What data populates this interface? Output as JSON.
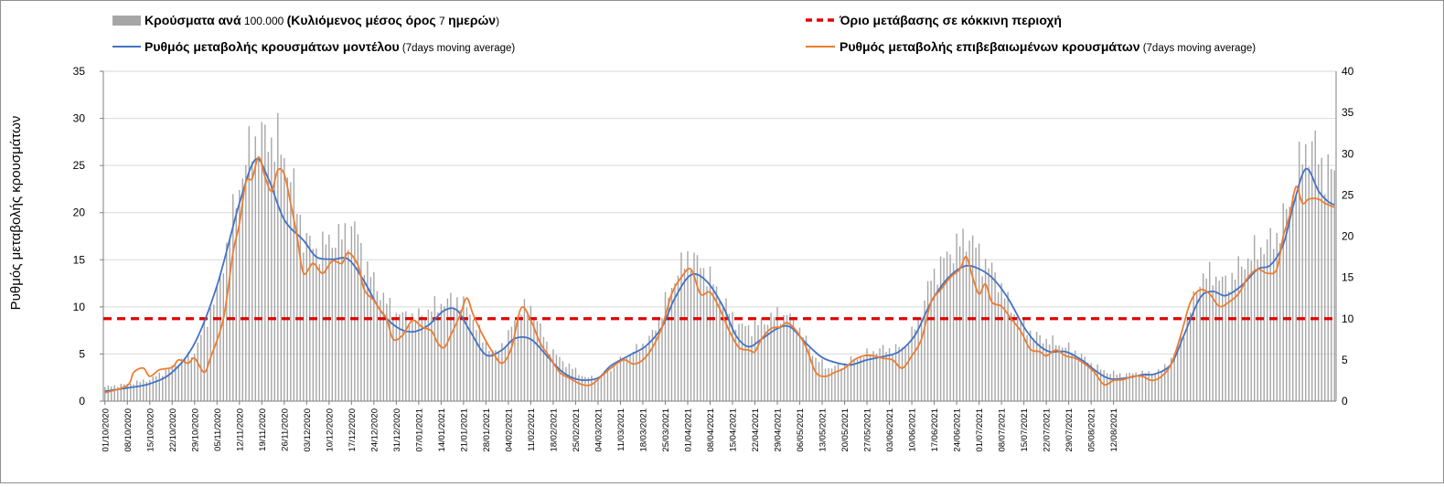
{
  "chart_data": {
    "type": "combo-bar-line",
    "ylabel": "Ρυθμός μεταβολής κρουσμάτων",
    "ylim_left": [
      0,
      35
    ],
    "ylim_right": [
      0,
      40
    ],
    "yticks_left": [
      "0",
      "5",
      "10",
      "15",
      "20",
      "25",
      "30",
      "35"
    ],
    "yticks_right": [
      "0",
      "5",
      "10",
      "15",
      "20",
      "25",
      "30",
      "35",
      "40"
    ],
    "threshold": 10,
    "legend": {
      "bars": {
        "bold": "Κρούσματα ανά",
        "normal1": " 100.000 ",
        "bold2": "(Κυλιόμενος μέσος όρος",
        "normal2": " 7 ",
        "bold3": "ημερών",
        "normal3": ")"
      },
      "threshold": "Όριο μετάβασης σε κόκκινη περιοχή",
      "model_line": {
        "bold": "Ρυθμός μεταβολής κρουσμάτων μοντέλου",
        "normal": " (7days moving average)"
      },
      "confirmed_line": {
        "bold": "Ρυθμός μεταβολής επιβεβαιωμένων κρουσμάτων",
        "normal": " (7days moving average)"
      }
    },
    "x_labels": [
      "01/10/2020",
      "08/10/2020",
      "15/10/2020",
      "22/10/2020",
      "29/10/2020",
      "05/11/2020",
      "12/11/2020",
      "19/11/2020",
      "26/11/2020",
      "03/12/2020",
      "10/12/2020",
      "17/12/2020",
      "24/12/2020",
      "31/12/2020",
      "07/01/2021",
      "14/01/2021",
      "21/01/2021",
      "28/01/2021",
      "04/02/2021",
      "11/02/2021",
      "18/02/2021",
      "25/02/2021",
      "04/03/2021",
      "11/03/2021",
      "18/03/2021",
      "25/03/2021",
      "01/04/2021",
      "08/04/2021",
      "15/04/2021",
      "22/04/2021",
      "29/04/2021",
      "06/05/2021",
      "13/05/2021",
      "20/05/2021",
      "27/05/2021",
      "03/06/2021",
      "10/06/2021",
      "17/06/2021",
      "24/06/2021",
      "01/07/2021",
      "08/07/2021",
      "15/07/2021",
      "22/07/2021",
      "29/07/2021",
      "05/08/2021",
      "12/08/2021"
    ],
    "colors": {
      "bars": "#a6a6a6",
      "model": "#4472c4",
      "confirmed": "#ed7d31",
      "threshold": "#e00000"
    },
    "model_keypoints": [
      [
        0,
        1.2
      ],
      [
        7,
        1.6
      ],
      [
        14,
        2.1
      ],
      [
        21,
        3.5
      ],
      [
        28,
        7.0
      ],
      [
        35,
        14.0
      ],
      [
        42,
        24.0
      ],
      [
        47,
        29.3
      ],
      [
        51,
        27.0
      ],
      [
        56,
        22.0
      ],
      [
        62,
        19.5
      ],
      [
        66,
        17.5
      ],
      [
        71,
        17.2
      ],
      [
        76,
        17.2
      ],
      [
        81,
        14.5
      ],
      [
        86,
        11.0
      ],
      [
        91,
        9.0
      ],
      [
        96,
        8.4
      ],
      [
        101,
        9.2
      ],
      [
        106,
        11.0
      ],
      [
        110,
        11.0
      ],
      [
        114,
        8.5
      ],
      [
        119,
        5.6
      ],
      [
        124,
        6.2
      ],
      [
        128,
        7.6
      ],
      [
        133,
        7.5
      ],
      [
        138,
        5.5
      ],
      [
        143,
        3.5
      ],
      [
        148,
        2.6
      ],
      [
        154,
        2.8
      ],
      [
        158,
        4.3
      ],
      [
        164,
        5.6
      ],
      [
        169,
        6.7
      ],
      [
        174,
        9.0
      ],
      [
        178,
        12.5
      ],
      [
        183,
        15.3
      ],
      [
        188,
        14.5
      ],
      [
        193,
        11.5
      ],
      [
        197,
        8.0
      ],
      [
        201,
        6.6
      ],
      [
        205,
        7.5
      ],
      [
        210,
        8.8
      ],
      [
        214,
        9.0
      ],
      [
        219,
        7.0
      ],
      [
        224,
        5.3
      ],
      [
        229,
        4.6
      ],
      [
        233,
        4.4
      ],
      [
        238,
        5.0
      ],
      [
        243,
        5.4
      ],
      [
        248,
        6.0
      ],
      [
        253,
        8.0
      ],
      [
        258,
        12.0
      ],
      [
        263,
        14.8
      ],
      [
        268,
        16.3
      ],
      [
        272,
        16.2
      ],
      [
        277,
        15.0
      ],
      [
        282,
        12.5
      ],
      [
        287,
        9.0
      ],
      [
        291,
        7.0
      ],
      [
        295,
        6.0
      ],
      [
        300,
        6.0
      ],
      [
        305,
        5.0
      ],
      [
        310,
        3.5
      ],
      [
        314,
        2.7
      ],
      [
        319,
        2.8
      ],
      [
        324,
        3.2
      ],
      [
        328,
        3.3
      ],
      [
        333,
        4.5
      ],
      [
        337,
        8.0
      ],
      [
        342,
        12.5
      ],
      [
        346,
        13.3
      ],
      [
        350,
        12.8
      ],
      [
        355,
        14.0
      ],
      [
        360,
        16.0
      ],
      [
        364,
        16.5
      ],
      [
        368,
        19.0
      ],
      [
        371,
        23.5
      ],
      [
        374,
        27.5
      ],
      [
        376,
        28.0
      ],
      [
        379,
        25.5
      ],
      [
        382,
        24.2
      ],
      [
        384,
        23.8
      ]
    ],
    "confirmed_keypoints": [
      [
        0,
        1.0
      ],
      [
        7,
        1.9
      ],
      [
        9,
        3.5
      ],
      [
        12,
        4.0
      ],
      [
        14,
        3.0
      ],
      [
        17,
        3.8
      ],
      [
        21,
        4.1
      ],
      [
        23,
        5.0
      ],
      [
        26,
        4.6
      ],
      [
        28,
        5.2
      ],
      [
        31,
        3.5
      ],
      [
        33,
        5.3
      ],
      [
        37,
        10.0
      ],
      [
        40,
        18.0
      ],
      [
        42,
        21.5
      ],
      [
        44,
        26.5
      ],
      [
        46,
        27.0
      ],
      [
        48,
        29.6
      ],
      [
        50,
        27.2
      ],
      [
        52,
        25.5
      ],
      [
        54,
        28.0
      ],
      [
        56,
        27.5
      ],
      [
        58,
        24.0
      ],
      [
        60,
        20.0
      ],
      [
        62,
        15.5
      ],
      [
        65,
        16.7
      ],
      [
        68,
        15.5
      ],
      [
        71,
        17.0
      ],
      [
        74,
        16.7
      ],
      [
        76,
        18.0
      ],
      [
        79,
        16.5
      ],
      [
        81,
        13.5
      ],
      [
        84,
        12.2
      ],
      [
        86,
        11.0
      ],
      [
        88,
        10.0
      ],
      [
        90,
        7.5
      ],
      [
        93,
        8.0
      ],
      [
        96,
        9.8
      ],
      [
        99,
        9.0
      ],
      [
        102,
        8.5
      ],
      [
        104,
        7.0
      ],
      [
        106,
        6.5
      ],
      [
        108,
        8.0
      ],
      [
        111,
        10.5
      ],
      [
        113,
        12.5
      ],
      [
        115,
        10.5
      ],
      [
        118,
        8.0
      ],
      [
        121,
        6.0
      ],
      [
        124,
        4.6
      ],
      [
        127,
        6.5
      ],
      [
        130,
        11.3
      ],
      [
        133,
        9.8
      ],
      [
        136,
        7.0
      ],
      [
        139,
        5.3
      ],
      [
        142,
        3.5
      ],
      [
        145,
        2.8
      ],
      [
        149,
        2.0
      ],
      [
        152,
        2.0
      ],
      [
        155,
        3.0
      ],
      [
        158,
        4.0
      ],
      [
        162,
        5.0
      ],
      [
        165,
        4.5
      ],
      [
        168,
        5.0
      ],
      [
        171,
        6.5
      ],
      [
        174,
        9.0
      ],
      [
        177,
        13.0
      ],
      [
        180,
        15.0
      ],
      [
        183,
        16.0
      ],
      [
        186,
        13.0
      ],
      [
        189,
        13.2
      ],
      [
        192,
        11.2
      ],
      [
        195,
        8.5
      ],
      [
        198,
        6.5
      ],
      [
        201,
        6.2
      ],
      [
        203,
        6.0
      ],
      [
        205,
        7.5
      ],
      [
        208,
        8.8
      ],
      [
        211,
        9.0
      ],
      [
        213,
        9.5
      ],
      [
        216,
        8.5
      ],
      [
        219,
        6.5
      ],
      [
        222,
        3.5
      ],
      [
        225,
        3.0
      ],
      [
        228,
        3.5
      ],
      [
        231,
        4.0
      ],
      [
        234,
        5.0
      ],
      [
        237,
        5.5
      ],
      [
        240,
        5.5
      ],
      [
        243,
        5.2
      ],
      [
        246,
        5.0
      ],
      [
        249,
        4.0
      ],
      [
        252,
        5.5
      ],
      [
        255,
        7.5
      ],
      [
        258,
        12.0
      ],
      [
        261,
        13.5
      ],
      [
        264,
        15.0
      ],
      [
        267,
        16.0
      ],
      [
        269,
        17.5
      ],
      [
        271,
        15.0
      ],
      [
        273,
        13.0
      ],
      [
        275,
        14.2
      ],
      [
        277,
        12.0
      ],
      [
        280,
        11.5
      ],
      [
        283,
        10.0
      ],
      [
        286,
        8.5
      ],
      [
        289,
        6.3
      ],
      [
        292,
        6.0
      ],
      [
        294,
        5.5
      ],
      [
        297,
        6.2
      ],
      [
        300,
        5.5
      ],
      [
        303,
        5.2
      ],
      [
        306,
        4.5
      ],
      [
        309,
        3.5
      ],
      [
        312,
        2.0
      ],
      [
        315,
        2.5
      ],
      [
        318,
        2.6
      ],
      [
        321,
        3.0
      ],
      [
        324,
        3.0
      ],
      [
        327,
        2.5
      ],
      [
        330,
        3.0
      ],
      [
        333,
        4.5
      ],
      [
        336,
        8.0
      ],
      [
        339,
        12.0
      ],
      [
        342,
        13.5
      ],
      [
        345,
        13.0
      ],
      [
        348,
        11.5
      ],
      [
        351,
        12.0
      ],
      [
        354,
        13.0
      ],
      [
        357,
        15.0
      ],
      [
        360,
        16.0
      ],
      [
        363,
        15.5
      ],
      [
        366,
        16.0
      ],
      [
        368,
        20.0
      ],
      [
        370,
        22.5
      ],
      [
        372,
        26.0
      ],
      [
        374,
        24.0
      ],
      [
        376,
        24.5
      ],
      [
        379,
        24.5
      ],
      [
        381,
        24.0
      ],
      [
        384,
        23.5
      ]
    ],
    "bar_keypoints": [
      [
        0,
        1.5
      ],
      [
        7,
        1.8
      ],
      [
        14,
        2.3
      ],
      [
        21,
        3.6
      ],
      [
        28,
        5.2
      ],
      [
        35,
        11.5
      ],
      [
        42,
        23.0
      ],
      [
        46,
        27.5
      ],
      [
        50,
        28.0
      ],
      [
        54,
        27.5
      ],
      [
        58,
        24.0
      ],
      [
        62,
        17.5
      ],
      [
        66,
        16.0
      ],
      [
        70,
        17.0
      ],
      [
        74,
        17.5
      ],
      [
        78,
        18.5
      ],
      [
        82,
        14.0
      ],
      [
        86,
        11.5
      ],
      [
        90,
        9.5
      ],
      [
        94,
        9.0
      ],
      [
        98,
        9.0
      ],
      [
        102,
        9.8
      ],
      [
        106,
        10.5
      ],
      [
        110,
        10.8
      ],
      [
        114,
        9.5
      ],
      [
        118,
        6.5
      ],
      [
        122,
        5.0
      ],
      [
        126,
        7.0
      ],
      [
        130,
        10.0
      ],
      [
        134,
        9.5
      ],
      [
        138,
        6.0
      ],
      [
        142,
        4.5
      ],
      [
        146,
        3.5
      ],
      [
        150,
        2.5
      ],
      [
        154,
        2.5
      ],
      [
        158,
        3.5
      ],
      [
        162,
        4.5
      ],
      [
        166,
        5.5
      ],
      [
        170,
        6.5
      ],
      [
        174,
        9.5
      ],
      [
        178,
        13.0
      ],
      [
        182,
        15.5
      ],
      [
        186,
        14.5
      ],
      [
        190,
        12.5
      ],
      [
        194,
        10.0
      ],
      [
        198,
        8.0
      ],
      [
        202,
        7.8
      ],
      [
        206,
        8.5
      ],
      [
        210,
        9.2
      ],
      [
        214,
        9.0
      ],
      [
        218,
        7.0
      ],
      [
        222,
        4.5
      ],
      [
        226,
        3.5
      ],
      [
        230,
        3.8
      ],
      [
        234,
        4.5
      ],
      [
        238,
        5.0
      ],
      [
        242,
        5.5
      ],
      [
        246,
        5.5
      ],
      [
        250,
        5.8
      ],
      [
        254,
        8.5
      ],
      [
        258,
        13.0
      ],
      [
        262,
        15.0
      ],
      [
        266,
        16.5
      ],
      [
        270,
        17.5
      ],
      [
        274,
        15.0
      ],
      [
        278,
        13.5
      ],
      [
        282,
        10.5
      ],
      [
        286,
        8.5
      ],
      [
        290,
        7.0
      ],
      [
        294,
        6.5
      ],
      [
        298,
        6.0
      ],
      [
        302,
        5.5
      ],
      [
        306,
        4.5
      ],
      [
        310,
        3.5
      ],
      [
        314,
        3.0
      ],
      [
        318,
        2.8
      ],
      [
        322,
        3.0
      ],
      [
        326,
        3.0
      ],
      [
        330,
        3.2
      ],
      [
        334,
        5.0
      ],
      [
        338,
        8.5
      ],
      [
        342,
        13.0
      ],
      [
        346,
        13.5
      ],
      [
        350,
        12.5
      ],
      [
        354,
        14.0
      ],
      [
        358,
        15.5
      ],
      [
        362,
        16.5
      ],
      [
        366,
        17.5
      ],
      [
        370,
        21.0
      ],
      [
        374,
        26.0
      ],
      [
        377,
        27.5
      ],
      [
        380,
        25.0
      ],
      [
        384,
        24.0
      ]
    ]
  }
}
